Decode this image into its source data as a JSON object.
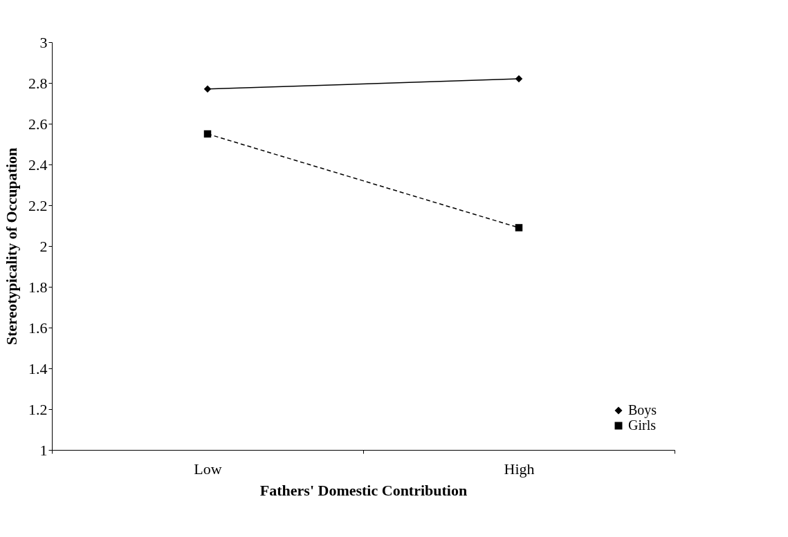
{
  "chart_data": {
    "type": "line",
    "xlabel": "Fathers' Domestic Contribution",
    "ylabel": "Stereotypicality of Occupation",
    "categories": [
      "Low",
      "High"
    ],
    "series": [
      {
        "name": "Boys",
        "color": "#000000",
        "values": [
          2.77,
          2.82
        ],
        "marker": "diamond",
        "line_style": "solid"
      },
      {
        "name": "Girls",
        "color": "#000000",
        "values": [
          2.55,
          2.09
        ],
        "marker": "square",
        "line_style": "dashed"
      }
    ],
    "ylim": [
      1,
      3
    ],
    "yticks": [
      1,
      1.2,
      1.4,
      1.6,
      1.8,
      2,
      2.2,
      2.4,
      2.6,
      2.8,
      3
    ],
    "grid": false,
    "legend": "bottom right"
  }
}
